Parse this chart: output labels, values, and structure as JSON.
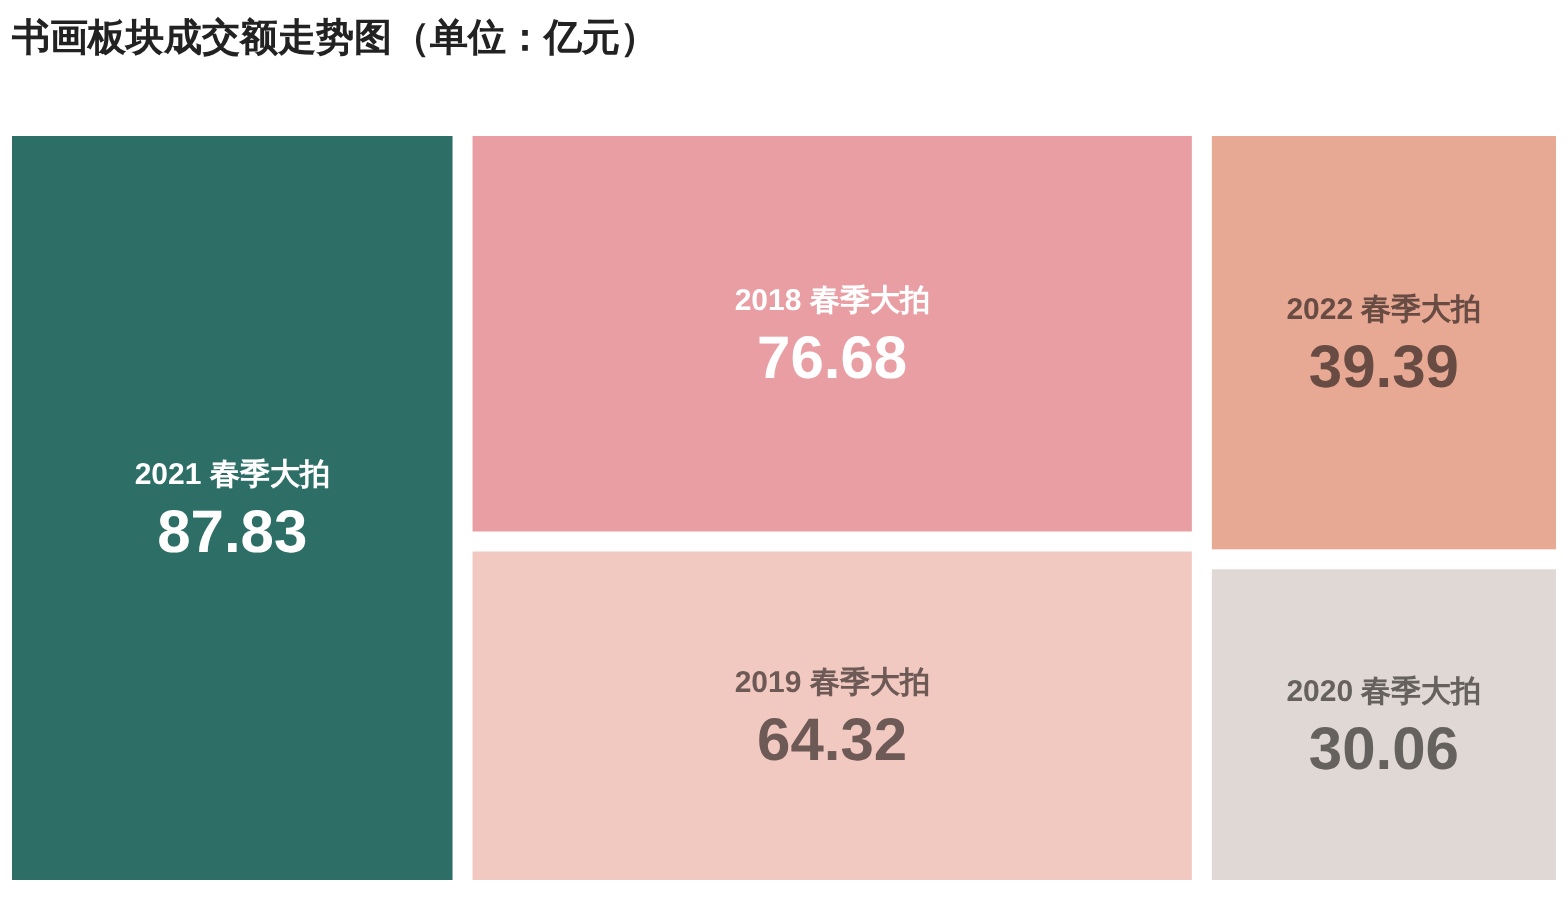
{
  "chart_data": {
    "type": "other",
    "title": "书画板块成交额走势图（单位：亿元）",
    "categories": [
      "2021 春季大拍",
      "2018 春季大拍",
      "2019 春季大拍",
      "2022 春季大拍",
      "2020 春季大拍"
    ],
    "values": [
      87.83,
      76.68,
      64.32,
      39.39,
      30.06
    ],
    "colors": [
      "#2d6e67",
      "#e89ea3",
      "#f2c9c0",
      "#e8a994",
      "#e0d8d4"
    ],
    "data_labels": true
  }
}
